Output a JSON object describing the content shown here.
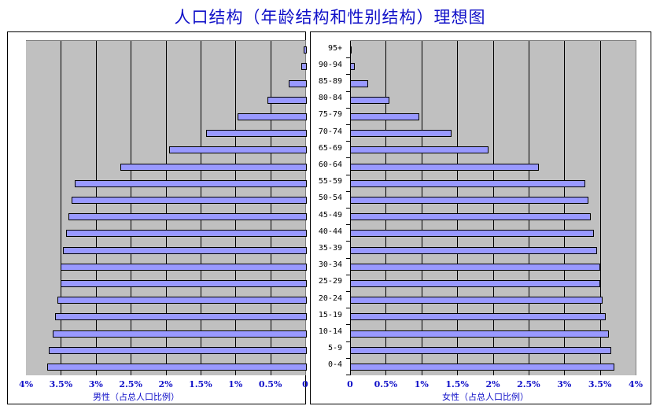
{
  "title": "人口结构（年龄结构和性别结构）理想图",
  "left": {
    "xlabel": "男性（占总人口比例）",
    "ticks": [
      "4%",
      "3.5%",
      "3%",
      "2.5%",
      "2%",
      "1.5%",
      "1%",
      "0.5%",
      "0"
    ]
  },
  "right": {
    "xlabel": "女性（占总人口比例）",
    "ticks": [
      "0",
      "0.5%",
      "1%",
      "1.5%",
      "2%",
      "2.5%",
      "3%",
      "3.5%",
      "4%"
    ]
  },
  "colors": {
    "bar": "#9999ff",
    "plot_bg": "#c0c0c0",
    "text": "#1010c8"
  },
  "chart_data": {
    "type": "bar",
    "title": "人口结构（年龄结构和性别结构）理想图",
    "orientation": "horizontal",
    "categories": [
      "95+",
      "90-94",
      "85-89",
      "80-84",
      "75-79",
      "70-74",
      "65-69",
      "60-64",
      "55-59",
      "50-54",
      "45-49",
      "40-44",
      "35-39",
      "30-34",
      "25-29",
      "20-24",
      "15-19",
      "10-14",
      "5-9",
      "0-4"
    ],
    "series": [
      {
        "name": "男性（占总人口比例）",
        "values": [
          0.02,
          0.06,
          0.24,
          0.54,
          0.97,
          1.42,
          1.95,
          2.65,
          3.3,
          3.35,
          3.39,
          3.42,
          3.47,
          3.5,
          3.5,
          3.55,
          3.58,
          3.62,
          3.67,
          3.7
        ]
      },
      {
        "name": "女性（占总人口比例）",
        "values": [
          0.02,
          0.07,
          0.25,
          0.55,
          0.97,
          1.42,
          1.94,
          2.64,
          3.3,
          3.34,
          3.37,
          3.42,
          3.46,
          3.5,
          3.5,
          3.54,
          3.58,
          3.62,
          3.66,
          3.7
        ]
      }
    ],
    "xlabel_left": "男性（占总人口比例）",
    "xlabel_right": "女性（占总人口比例）",
    "xlim": [
      0,
      4
    ],
    "tick_step": 0.5,
    "unit": "%",
    "grid": true,
    "legend": "none"
  }
}
